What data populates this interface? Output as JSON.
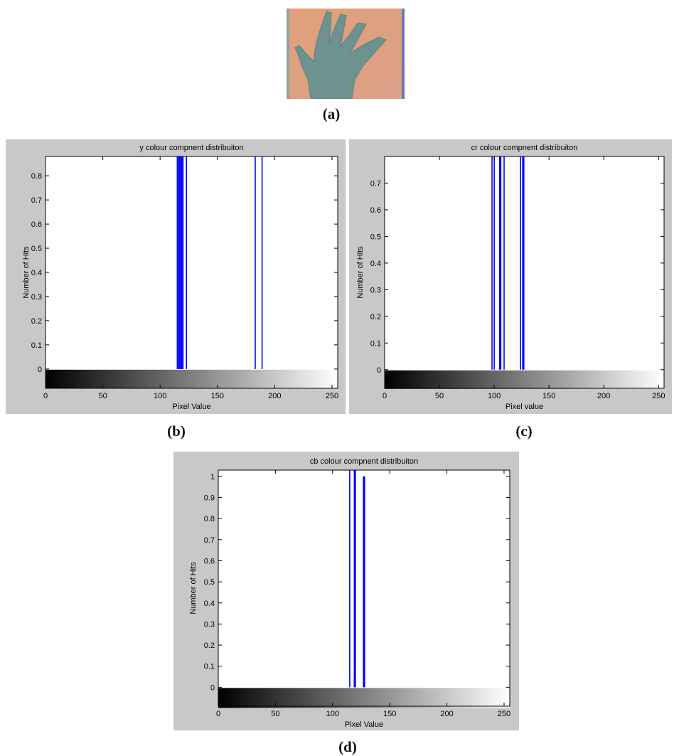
{
  "panel_a": {
    "caption": "(a)",
    "colors": {
      "background": "#e39a73",
      "hand": "#6e9290",
      "edge_left": "#8aa3a8",
      "edge_right": "#6a78b8"
    }
  },
  "chart_data": [
    {
      "type": "bar",
      "caption": "(b)",
      "title": "y colour compnent distribuiton",
      "xlabel": "Pixel Value",
      "ylabel": "Number of Hits",
      "xlim": [
        0,
        255
      ],
      "ylim": [
        -0.08,
        0.88
      ],
      "xticks": [
        0,
        50,
        100,
        150,
        200,
        250
      ],
      "yticks": [
        0,
        0.1,
        0.2,
        0.3,
        0.4,
        0.5,
        0.6,
        0.7,
        0.8
      ],
      "colorbar": "gray",
      "series_color": "#0000ff",
      "values": [
        {
          "x": 115,
          "y": 0.88
        },
        {
          "x": 116,
          "y": 0.88
        },
        {
          "x": 117,
          "y": 0.88
        },
        {
          "x": 118,
          "y": 0.88
        },
        {
          "x": 119,
          "y": 0.88
        },
        {
          "x": 120,
          "y": 0.88
        },
        {
          "x": 123,
          "y": 0.88
        },
        {
          "x": 183,
          "y": 0.88
        },
        {
          "x": 189,
          "y": 0.88
        }
      ]
    },
    {
      "type": "bar",
      "caption": "(c)",
      "title": "cr colour compnent distribuiton",
      "xlabel": "Pixel value",
      "ylabel": "Number of Hits",
      "xlim": [
        0,
        255
      ],
      "ylim": [
        -0.07,
        0.8
      ],
      "xticks": [
        0,
        50,
        100,
        150,
        200,
        250
      ],
      "yticks": [
        0,
        0.1,
        0.2,
        0.3,
        0.4,
        0.5,
        0.6,
        0.7
      ],
      "colorbar": "gray",
      "series_color": "#0000ff",
      "values": [
        {
          "x": 98,
          "y": 0.8
        },
        {
          "x": 100,
          "y": 0.8
        },
        {
          "x": 105,
          "y": 0.8
        },
        {
          "x": 106,
          "y": 0.8
        },
        {
          "x": 109,
          "y": 0.8
        },
        {
          "x": 124,
          "y": 0.8
        },
        {
          "x": 126,
          "y": 0.8
        },
        {
          "x": 127,
          "y": 0.8
        }
      ]
    },
    {
      "type": "bar",
      "caption": "(d)",
      "title": "cb colour compnent distribuiton",
      "xlabel": "Pixel Value",
      "ylabel": "Number of Hits",
      "xlim": [
        0,
        255
      ],
      "ylim": [
        -0.09,
        1.03
      ],
      "xticks": [
        0,
        50,
        100,
        150,
        200,
        250
      ],
      "yticks": [
        0,
        0.1,
        0.2,
        0.3,
        0.4,
        0.5,
        0.6,
        0.7,
        0.8,
        0.9,
        1
      ],
      "colorbar": "gray",
      "series_color": "#0000ff",
      "values": [
        {
          "x": 115,
          "y": 1.03
        },
        {
          "x": 119,
          "y": 1.03
        },
        {
          "x": 120,
          "y": 1.03
        },
        {
          "x": 127,
          "y": 1.0
        },
        {
          "x": 128,
          "y": 1.0
        }
      ]
    }
  ]
}
